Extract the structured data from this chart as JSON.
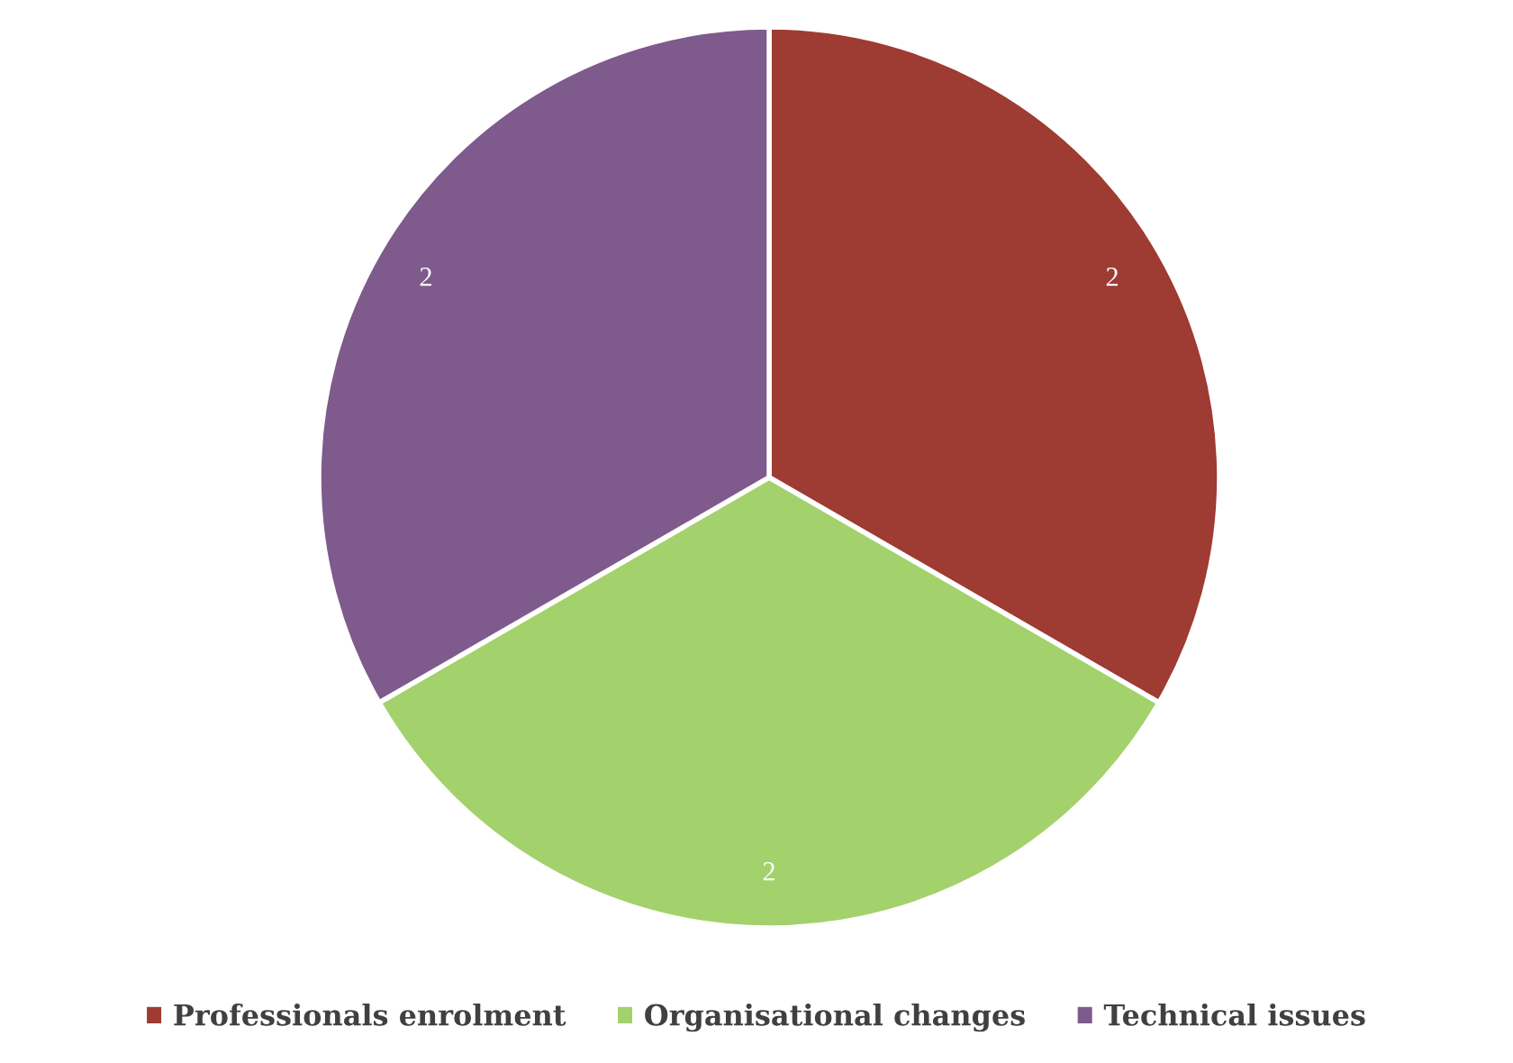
{
  "chart_data": {
    "type": "pie",
    "categories": [
      "Professionals enrolment",
      "Organisational changes",
      "Technical issues"
    ],
    "values": [
      2,
      2,
      2
    ],
    "colors": [
      "#9e3b33",
      "#a3d16b",
      "#7f5a8c"
    ],
    "data_labels": true,
    "legend": "bottom"
  }
}
